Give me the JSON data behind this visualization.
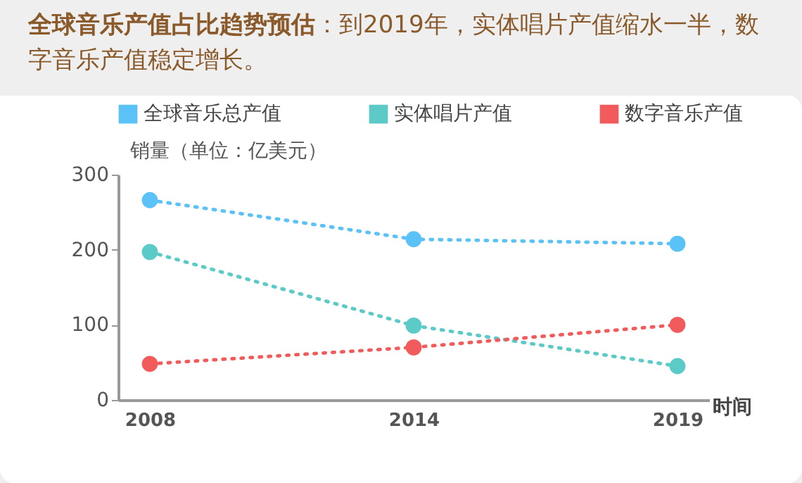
{
  "chart_data": {
    "type": "line",
    "title": "全球音乐产值占比趋势预估",
    "subtitle": "：到2019年，实体唱片产值缩水一半，数字音乐产值稳定增长。",
    "xlabel": "时间",
    "ylabel": "销量（单位：亿美元）",
    "categories": [
      "2008",
      "2014",
      "2019"
    ],
    "ylim": [
      0,
      300
    ],
    "yticks": [
      0,
      100,
      200,
      300
    ],
    "grid": false,
    "legend": "top",
    "marker": "circle",
    "line_style": "dotted",
    "series": [
      {
        "name": "全球音乐总产值",
        "color": "#5bc2f7",
        "values": [
          266,
          214,
          208
        ]
      },
      {
        "name": "实体唱片产值",
        "color": "#5ccac6",
        "values": [
          197,
          99,
          45
        ]
      },
      {
        "name": "数字音乐产值",
        "color": "#f25b5b",
        "values": [
          48,
          70,
          100
        ]
      }
    ]
  }
}
